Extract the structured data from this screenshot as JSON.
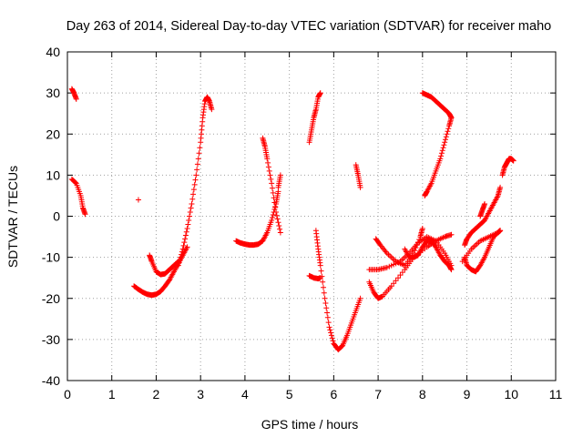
{
  "chart_data": {
    "type": "scatter",
    "title": "Day 263 of 2014, Sidereal Day-to-day VTEC variation (SDTVAR) for receiver maho",
    "xlabel": "GPS time / hours",
    "ylabel": "SDTVAR / TECUs",
    "xlim": [
      0,
      11
    ],
    "ylim": [
      -40,
      40
    ],
    "x_ticks": [
      0,
      1,
      2,
      3,
      4,
      5,
      6,
      7,
      8,
      9,
      10,
      11
    ],
    "y_ticks": [
      -40,
      -30,
      -20,
      -10,
      0,
      10,
      20,
      30,
      40
    ],
    "grid": true,
    "marker": "+",
    "marker_color": "#ff0000",
    "tracks": [
      {
        "x": [
          0.1,
          0.15,
          0.2
        ],
        "y": [
          31,
          30,
          28.5
        ]
      },
      {
        "x": [
          0.1,
          0.2,
          0.3,
          0.35,
          0.4
        ],
        "y": [
          9,
          8,
          5,
          2,
          0.5
        ]
      },
      {
        "x": [
          1.6
        ],
        "y": [
          4
        ]
      },
      {
        "x": [
          1.5,
          1.6,
          1.7,
          1.8,
          1.9,
          2.0,
          2.1,
          2.2,
          2.3,
          2.4,
          2.5,
          2.6,
          2.7
        ],
        "y": [
          -17,
          -17.8,
          -18.5,
          -19,
          -19.2,
          -19,
          -18.3,
          -17,
          -15.5,
          -13.5,
          -11.5,
          -9.5,
          -7.5
        ]
      },
      {
        "x": [
          1.85,
          1.9,
          2.0,
          2.1,
          2.2,
          2.3,
          2.4,
          2.5
        ],
        "y": [
          -9.5,
          -11,
          -13.5,
          -14.2,
          -14,
          -13,
          -12,
          -11
        ]
      },
      {
        "x": [
          2.5,
          2.6,
          2.7,
          2.8,
          2.9,
          3.0,
          3.05,
          3.1,
          3.15,
          3.2,
          3.25
        ],
        "y": [
          -12,
          -8,
          -3,
          3,
          10,
          18,
          24,
          28,
          29,
          28,
          26
        ]
      },
      {
        "x": [
          3.8,
          3.9,
          4.0,
          4.1,
          4.2,
          4.3,
          4.4,
          4.5,
          4.6,
          4.7,
          4.75
        ],
        "y": [
          -6,
          -6.5,
          -6.8,
          -7,
          -7,
          -6.8,
          -6,
          -4,
          -1,
          3,
          6
        ]
      },
      {
        "x": [
          4.4,
          4.45,
          4.5,
          4.6,
          4.7,
          4.8
        ],
        "y": [
          19,
          17,
          14,
          8,
          1,
          -4
        ]
      },
      {
        "x": [
          4.75,
          4.8
        ],
        "y": [
          7,
          10
        ]
      },
      {
        "x": [
          5.45,
          5.5,
          5.55,
          5.6,
          5.65,
          5.7
        ],
        "y": [
          18,
          21,
          24,
          26,
          29,
          30
        ]
      },
      {
        "x": [
          5.45,
          5.55,
          5.65,
          5.7
        ],
        "y": [
          -14.5,
          -15,
          -15.2,
          -15
        ]
      },
      {
        "x": [
          5.6,
          5.65,
          5.7,
          5.8,
          5.9,
          6.0,
          6.1,
          6.2,
          6.3,
          6.4,
          6.5,
          6.6
        ],
        "y": [
          -3.5,
          -8,
          -12,
          -20,
          -27,
          -31,
          -32.5,
          -31.5,
          -29,
          -26,
          -23,
          -20
        ]
      },
      {
        "x": [
          6.5,
          6.55,
          6.6
        ],
        "y": [
          12.5,
          10,
          7
        ]
      },
      {
        "x": [
          6.95,
          7.05,
          7.2,
          7.4,
          7.6,
          7.8,
          7.95,
          8.0
        ],
        "y": [
          -5.5,
          -7,
          -9,
          -11,
          -12,
          -9,
          -5,
          -3
        ]
      },
      {
        "x": [
          6.8,
          6.9,
          7.0,
          7.1,
          7.3,
          7.6,
          7.8,
          8.1,
          8.3,
          8.5,
          8.65
        ],
        "y": [
          -16,
          -18.5,
          -20,
          -19.5,
          -17,
          -13,
          -10,
          -7.5,
          -6,
          -5,
          -4.5
        ]
      },
      {
        "x": [
          6.8,
          7.0,
          7.2,
          7.5,
          7.7,
          7.9,
          8.1,
          8.3,
          8.5,
          8.65
        ],
        "y": [
          -13,
          -13,
          -12.5,
          -11,
          -9,
          -6.5,
          -5,
          -6,
          -9,
          -12
        ]
      },
      {
        "x": [
          7.6,
          7.7,
          7.8,
          7.9,
          8.0,
          8.1,
          8.2,
          8.3,
          8.4,
          8.5,
          8.6,
          8.65
        ],
        "y": [
          -8,
          -10,
          -10,
          -9.5,
          -7.5,
          -6,
          -6,
          -7.5,
          -9.5,
          -11,
          -12,
          -13
        ]
      },
      {
        "x": [
          8.05,
          8.1,
          8.2,
          8.3,
          8.4,
          8.5,
          8.6,
          8.65
        ],
        "y": [
          5,
          6,
          8,
          11,
          14,
          18,
          22,
          24
        ]
      },
      {
        "x": [
          8.0,
          8.1,
          8.2,
          8.3,
          8.4,
          8.5,
          8.6,
          8.65
        ],
        "y": [
          30,
          29.5,
          29,
          28,
          27,
          26,
          25,
          24
        ]
      },
      {
        "x": [
          8.95,
          9.0,
          9.1,
          9.2,
          9.3,
          9.4,
          9.5,
          9.6,
          9.7,
          9.75
        ],
        "y": [
          -10,
          -12,
          -13,
          -13.5,
          -12,
          -10,
          -7.5,
          -5,
          -4,
          -3.5
        ]
      },
      {
        "x": [
          8.95,
          9.0,
          9.1,
          9.2,
          9.3,
          9.4,
          9.5,
          9.6,
          9.7,
          9.75
        ],
        "y": [
          -7,
          -5.5,
          -4,
          -3,
          -2,
          -1,
          1,
          3,
          5,
          7
        ]
      },
      {
        "x": [
          8.9,
          9.1,
          9.3,
          9.5,
          9.7,
          9.75
        ],
        "y": [
          -11,
          -8,
          -6,
          -5,
          -4,
          -3.5
        ]
      },
      {
        "x": [
          9.3,
          9.35,
          9.4
        ],
        "y": [
          0,
          1.5,
          3
        ]
      },
      {
        "x": [
          9.8,
          9.85,
          9.9,
          9.95,
          10.0,
          10.05
        ],
        "y": [
          10,
          12,
          13,
          14,
          14,
          13.5
        ]
      }
    ]
  }
}
